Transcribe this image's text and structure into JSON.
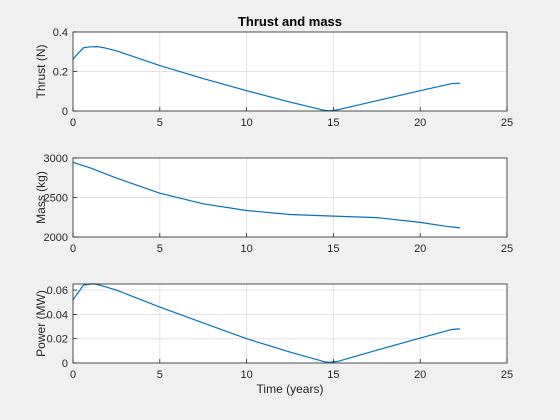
{
  "colors": {
    "figure_bg": "#f0f0f0",
    "axes_bg": "#ffffff",
    "axis_line": "#262626",
    "grid": "#e3e3e3",
    "series": "#0072BD"
  },
  "chart_data": [
    {
      "type": "line",
      "title": "Thrust and mass",
      "xlabel": "",
      "ylabel": "Thrust (N)",
      "xlim": [
        0,
        25
      ],
      "ylim": [
        0,
        0.4
      ],
      "xticks": [
        0,
        5,
        10,
        15,
        20,
        25
      ],
      "yticks": [
        0,
        0.2,
        0.4
      ],
      "xtick_labels": [
        "0",
        "5",
        "10",
        "15",
        "20",
        "25"
      ],
      "ytick_labels": [
        "0",
        "0.2",
        "0.4"
      ],
      "grid": true,
      "x": [
        0,
        0.3,
        0.6,
        1.0,
        1.4,
        1.8,
        2.5,
        5,
        7.5,
        10,
        12.5,
        14.5,
        14.8,
        15.3,
        17.5,
        20,
        21.8,
        22.1,
        22.3
      ],
      "y": [
        0.263,
        0.292,
        0.32,
        0.325,
        0.326,
        0.32,
        0.305,
        0.23,
        0.164,
        0.103,
        0.045,
        0.003,
        0.001,
        0.007,
        0.052,
        0.103,
        0.138,
        0.14,
        0.14
      ]
    },
    {
      "type": "line",
      "title": "",
      "xlabel": "",
      "ylabel": "Mass (kg)",
      "xlim": [
        0,
        25
      ],
      "ylim": [
        2000,
        3000
      ],
      "xticks": [
        0,
        5,
        10,
        15,
        20,
        25
      ],
      "yticks": [
        2000,
        2500,
        3000
      ],
      "xtick_labels": [
        "0",
        "5",
        "10",
        "15",
        "20",
        "25"
      ],
      "ytick_labels": [
        "2000",
        "2500",
        "3000"
      ],
      "grid": true,
      "x": [
        0,
        1,
        2.5,
        5,
        7.5,
        10,
        12.5,
        15,
        17.5,
        20,
        21.5,
        22.3
      ],
      "y": [
        2945,
        2875,
        2745,
        2555,
        2420,
        2335,
        2285,
        2265,
        2245,
        2185,
        2135,
        2115
      ]
    },
    {
      "type": "line",
      "title": "",
      "xlabel": "Time (years)",
      "ylabel": "Power (MW)",
      "xlim": [
        0,
        25
      ],
      "ylim": [
        0,
        0.065
      ],
      "xticks": [
        0,
        5,
        10,
        15,
        20,
        25
      ],
      "yticks": [
        0,
        0.02,
        0.04,
        0.06
      ],
      "xtick_labels": [
        "0",
        "5",
        "10",
        "15",
        "20",
        "25"
      ],
      "ytick_labels": [
        "0",
        "0.02",
        "0.04",
        "0.06"
      ],
      "grid": true,
      "x": [
        0,
        0.3,
        0.6,
        1.0,
        1.3,
        1.8,
        2.5,
        5,
        7.5,
        10,
        12.5,
        14.5,
        14.8,
        15.3,
        17.5,
        20,
        21.8,
        22.1,
        22.3
      ],
      "y": [
        0.052,
        0.058,
        0.064,
        0.065,
        0.065,
        0.063,
        0.06,
        0.046,
        0.033,
        0.02,
        0.009,
        0.001,
        0.0005,
        0.0015,
        0.0105,
        0.0205,
        0.0275,
        0.028,
        0.028
      ]
    }
  ]
}
